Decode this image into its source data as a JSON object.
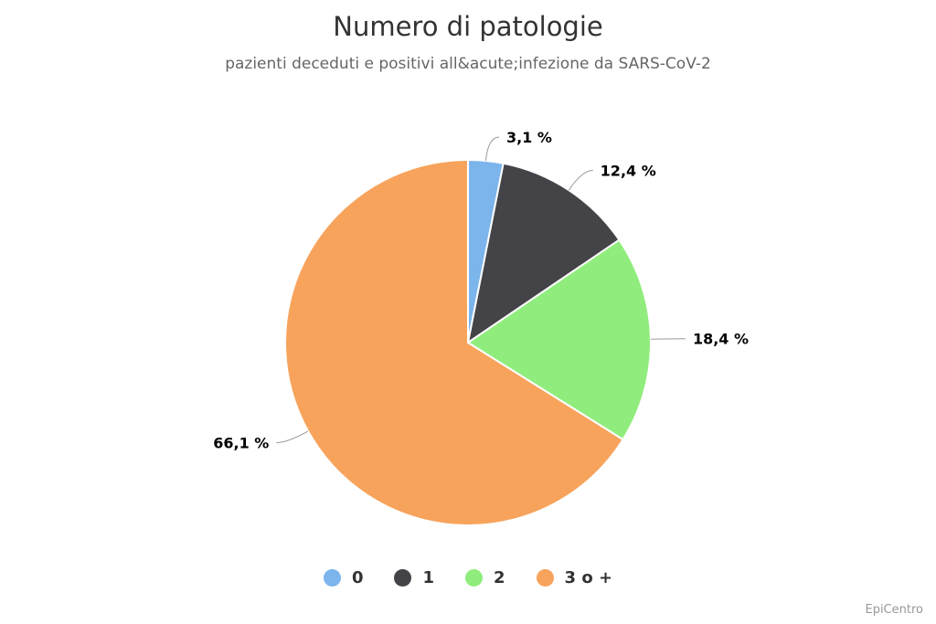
{
  "title": "Numero di patologie",
  "subtitle": "pazienti deceduti e positivi all&acute;infezione da SARS-CoV-2",
  "credits": "EpiCentro",
  "chart_data": {
    "type": "pie",
    "title": "Numero di patologie",
    "subtitle": "pazienti deceduti e positivi all&acute;infezione da SARS-CoV-2",
    "categories": [
      "0",
      "1",
      "2",
      "3 o +"
    ],
    "values": [
      3.1,
      12.4,
      18.4,
      66.1
    ],
    "labels": [
      "3,1 %",
      "12,4 %",
      "18,4 %",
      "66,1 %"
    ],
    "colors": [
      "#7cb5ec",
      "#434348",
      "#90ed7d",
      "#f7a35c"
    ],
    "legend": "bottom"
  }
}
